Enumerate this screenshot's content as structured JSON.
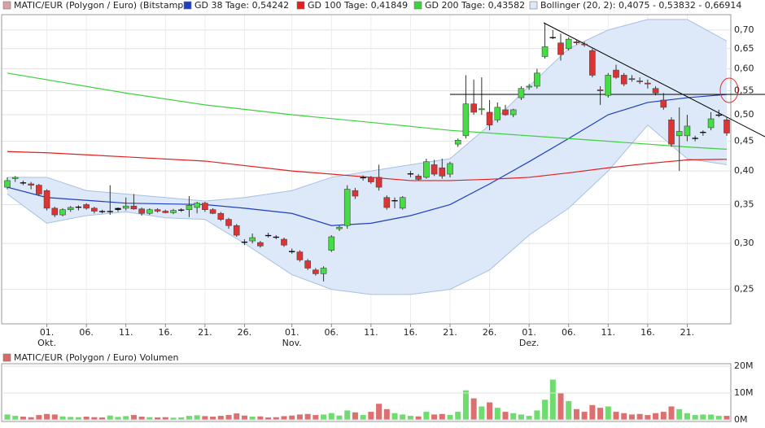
{
  "chart_data": {
    "type": "candlestick",
    "name": "MATIC/EUR (Polygon / Euro) (Bitstamp)",
    "log_scale": true,
    "grid": true,
    "up_color": "#44dd44",
    "down_color": "#dd3333",
    "flat_color": "#000000",
    "legend_color": "#d9a3a3",
    "x": [
      "09-26",
      "09-27",
      "09-28",
      "09-29",
      "09-30",
      "10-01",
      "10-02",
      "10-03",
      "10-04",
      "10-05",
      "10-06",
      "10-07",
      "10-08",
      "10-09",
      "10-10",
      "10-11",
      "10-12",
      "10-13",
      "10-14",
      "10-15",
      "10-16",
      "10-17",
      "10-18",
      "10-19",
      "10-20",
      "10-21",
      "10-22",
      "10-23",
      "10-24",
      "10-25",
      "10-26",
      "10-27",
      "10-28",
      "10-29",
      "10-30",
      "10-31",
      "11-01",
      "11-02",
      "11-03",
      "11-04",
      "11-05",
      "11-06",
      "11-07",
      "11-08",
      "11-09",
      "11-10",
      "11-11",
      "11-12",
      "11-13",
      "11-14",
      "11-15",
      "11-16",
      "11-17",
      "11-18",
      "11-19",
      "11-20",
      "11-21",
      "11-22",
      "11-23",
      "11-24",
      "11-25",
      "11-26",
      "11-27",
      "11-28",
      "11-29",
      "11-30",
      "12-01",
      "12-02",
      "12-03",
      "12-04",
      "12-05",
      "12-06",
      "12-07",
      "12-08",
      "12-09",
      "12-10",
      "12-11",
      "12-12",
      "12-13",
      "12-14",
      "12-15",
      "12-16",
      "12-17",
      "12-18",
      "12-19",
      "12-20",
      "12-21",
      "12-22",
      "12-23",
      "12-24",
      "12-25",
      "12-26"
    ],
    "ohlc": [
      [
        0.375,
        0.39,
        0.372,
        0.385
      ],
      [
        0.388,
        0.392,
        0.383,
        0.39
      ],
      [
        0.382,
        0.385,
        0.378,
        0.381
      ],
      [
        0.38,
        0.383,
        0.372,
        0.378
      ],
      [
        0.378,
        0.38,
        0.362,
        0.365
      ],
      [
        0.37,
        0.372,
        0.342,
        0.345
      ],
      [
        0.345,
        0.347,
        0.333,
        0.336
      ],
      [
        0.336,
        0.345,
        0.334,
        0.343
      ],
      [
        0.343,
        0.348,
        0.34,
        0.346
      ],
      [
        0.346,
        0.349,
        0.342,
        0.347
      ],
      [
        0.35,
        0.352,
        0.343,
        0.345
      ],
      [
        0.345,
        0.347,
        0.338,
        0.341
      ],
      [
        0.341,
        0.343,
        0.338,
        0.34
      ],
      [
        0.34,
        0.378,
        0.336,
        0.341
      ],
      [
        0.343,
        0.346,
        0.34,
        0.345
      ],
      [
        0.345,
        0.36,
        0.342,
        0.348
      ],
      [
        0.348,
        0.365,
        0.343,
        0.344
      ],
      [
        0.344,
        0.346,
        0.335,
        0.338
      ],
      [
        0.338,
        0.345,
        0.336,
        0.343
      ],
      [
        0.343,
        0.345,
        0.339,
        0.341
      ],
      [
        0.341,
        0.343,
        0.338,
        0.339
      ],
      [
        0.339,
        0.344,
        0.337,
        0.342
      ],
      [
        0.342,
        0.345,
        0.34,
        0.343
      ],
      [
        0.343,
        0.362,
        0.333,
        0.349
      ],
      [
        0.346,
        0.354,
        0.338,
        0.352
      ],
      [
        0.352,
        0.354,
        0.34,
        0.343
      ],
      [
        0.343,
        0.345,
        0.337,
        0.338
      ],
      [
        0.338,
        0.34,
        0.328,
        0.33
      ],
      [
        0.33,
        0.332,
        0.318,
        0.322
      ],
      [
        0.322,
        0.324,
        0.308,
        0.31
      ],
      [
        0.302,
        0.305,
        0.298,
        0.301
      ],
      [
        0.303,
        0.312,
        0.3,
        0.307
      ],
      [
        0.301,
        0.303,
        0.295,
        0.297
      ],
      [
        0.31,
        0.313,
        0.307,
        0.309
      ],
      [
        0.308,
        0.31,
        0.305,
        0.307
      ],
      [
        0.305,
        0.307,
        0.296,
        0.298
      ],
      [
        0.291,
        0.294,
        0.288,
        0.29
      ],
      [
        0.29,
        0.292,
        0.279,
        0.281
      ],
      [
        0.28,
        0.282,
        0.27,
        0.272
      ],
      [
        0.27,
        0.272,
        0.264,
        0.266
      ],
      [
        0.266,
        0.274,
        0.258,
        0.272
      ],
      [
        0.292,
        0.31,
        0.29,
        0.308
      ],
      [
        0.318,
        0.322,
        0.315,
        0.32
      ],
      [
        0.322,
        0.378,
        0.318,
        0.372
      ],
      [
        0.37,
        0.374,
        0.358,
        0.362
      ],
      [
        0.39,
        0.393,
        0.385,
        0.39
      ],
      [
        0.39,
        0.392,
        0.38,
        0.383
      ],
      [
        0.39,
        0.41,
        0.37,
        0.375
      ],
      [
        0.36,
        0.363,
        0.343,
        0.346
      ],
      [
        0.355,
        0.36,
        0.345,
        0.356
      ],
      [
        0.345,
        0.362,
        0.343,
        0.36
      ],
      [
        0.395,
        0.4,
        0.39,
        0.396
      ],
      [
        0.392,
        0.395,
        0.385,
        0.387
      ],
      [
        0.39,
        0.42,
        0.388,
        0.415
      ],
      [
        0.41,
        0.418,
        0.392,
        0.395
      ],
      [
        0.405,
        0.42,
        0.388,
        0.392
      ],
      [
        0.395,
        0.415,
        0.39,
        0.412
      ],
      [
        0.445,
        0.455,
        0.44,
        0.452
      ],
      [
        0.46,
        0.585,
        0.455,
        0.522
      ],
      [
        0.522,
        0.575,
        0.5,
        0.505
      ],
      [
        0.51,
        0.58,
        0.5,
        0.512
      ],
      [
        0.505,
        0.53,
        0.47,
        0.48
      ],
      [
        0.49,
        0.525,
        0.485,
        0.515
      ],
      [
        0.51,
        0.52,
        0.498,
        0.5
      ],
      [
        0.5,
        0.512,
        0.495,
        0.51
      ],
      [
        0.535,
        0.56,
        0.53,
        0.555
      ],
      [
        0.558,
        0.565,
        0.552,
        0.56
      ],
      [
        0.56,
        0.6,
        0.555,
        0.59
      ],
      [
        0.63,
        0.72,
        0.625,
        0.655
      ],
      [
        0.68,
        0.7,
        0.675,
        0.68
      ],
      [
        0.665,
        0.69,
        0.62,
        0.635
      ],
      [
        0.65,
        0.68,
        0.645,
        0.675
      ],
      [
        0.668,
        0.672,
        0.66,
        0.665
      ],
      [
        0.662,
        0.668,
        0.655,
        0.66
      ],
      [
        0.645,
        0.65,
        0.58,
        0.585
      ],
      [
        0.552,
        0.56,
        0.52,
        0.55
      ],
      [
        0.54,
        0.59,
        0.535,
        0.585
      ],
      [
        0.597,
        0.61,
        0.577,
        0.58
      ],
      [
        0.585,
        0.59,
        0.56,
        0.565
      ],
      [
        0.577,
        0.585,
        0.57,
        0.575
      ],
      [
        0.572,
        0.58,
        0.565,
        0.57
      ],
      [
        0.567,
        0.575,
        0.555,
        0.565
      ],
      [
        0.555,
        0.56,
        0.54,
        0.545
      ],
      [
        0.53,
        0.545,
        0.51,
        0.515
      ],
      [
        0.49,
        0.495,
        0.44,
        0.445
      ],
      [
        0.46,
        0.515,
        0.4,
        0.468
      ],
      [
        0.46,
        0.5,
        0.45,
        0.478
      ],
      [
        0.455,
        0.46,
        0.45,
        0.456
      ],
      [
        0.466,
        0.47,
        0.46,
        0.467
      ],
      [
        0.475,
        0.505,
        0.47,
        0.492
      ],
      [
        0.5,
        0.51,
        0.495,
        0.5
      ],
      [
        0.49,
        0.495,
        0.46,
        0.465
      ]
    ],
    "overlays": [
      {
        "name": "GD 38 Tage: 0,54242",
        "color": "#1f3fbf",
        "x": [
          "09-26",
          "10-01",
          "10-11",
          "10-21",
          "10-26",
          "11-01",
          "11-06",
          "11-11",
          "11-16",
          "11-21",
          "11-26",
          "12-01",
          "12-06",
          "12-11",
          "12-16",
          "12-21",
          "12-26"
        ],
        "values": [
          0.375,
          0.36,
          0.352,
          0.35,
          0.345,
          0.338,
          0.322,
          0.325,
          0.335,
          0.35,
          0.38,
          0.415,
          0.455,
          0.5,
          0.525,
          0.535,
          0.542
        ]
      },
      {
        "name": "GD 100 Tage: 0,41849",
        "color": "#e02020",
        "x": [
          "09-26",
          "10-01",
          "10-11",
          "10-21",
          "11-01",
          "11-11",
          "11-16",
          "11-21",
          "11-26",
          "12-01",
          "12-06",
          "12-11",
          "12-16",
          "12-21",
          "12-26"
        ],
        "values": [
          0.432,
          0.43,
          0.423,
          0.416,
          0.4,
          0.39,
          0.385,
          0.385,
          0.387,
          0.39,
          0.397,
          0.405,
          0.412,
          0.418,
          0.419
        ]
      },
      {
        "name": "GD 200 Tage: 0,43582",
        "color": "#3ed03e",
        "x": [
          "09-26",
          "10-11",
          "10-21",
          "11-01",
          "11-11",
          "11-21",
          "12-01",
          "12-11",
          "12-21",
          "12-26"
        ],
        "values": [
          0.59,
          0.545,
          0.52,
          0.5,
          0.485,
          0.47,
          0.46,
          0.45,
          0.44,
          0.436
        ]
      }
    ],
    "bollinger": {
      "name": "Bollinger (20, 2): 0,4075 - 0,53832 - 0,66914",
      "color": "#dde8f8",
      "line_color": "#a9c0e2",
      "x": [
        "09-26",
        "10-01",
        "10-06",
        "10-11",
        "10-16",
        "10-21",
        "10-26",
        "11-01",
        "11-06",
        "11-11",
        "11-16",
        "11-21",
        "11-26",
        "12-01",
        "12-06",
        "12-11",
        "12-16",
        "12-21",
        "12-26"
      ],
      "upper": [
        0.39,
        0.39,
        0.37,
        0.365,
        0.36,
        0.355,
        0.36,
        0.37,
        0.39,
        0.4,
        0.41,
        0.42,
        0.48,
        0.56,
        0.65,
        0.7,
        0.73,
        0.73,
        0.67
      ],
      "lower": [
        0.365,
        0.325,
        0.335,
        0.34,
        0.332,
        0.33,
        0.3,
        0.265,
        0.25,
        0.245,
        0.245,
        0.25,
        0.27,
        0.31,
        0.345,
        0.4,
        0.48,
        0.42,
        0.41
      ]
    },
    "ylim": [
      0.218,
      0.744
    ],
    "yticks": [
      {
        "value": 0.25,
        "label": "0,25"
      },
      {
        "value": 0.3,
        "label": "0,30"
      },
      {
        "value": 0.35,
        "label": "0,35"
      },
      {
        "value": 0.4,
        "label": "0,40"
      },
      {
        "value": 0.45,
        "label": "0,45"
      },
      {
        "value": 0.5,
        "label": "0,50"
      },
      {
        "value": 0.55,
        "label": "0,55"
      },
      {
        "value": 0.6,
        "label": "0,60"
      },
      {
        "value": 0.65,
        "label": "0,65"
      },
      {
        "value": 0.7,
        "label": "0,70"
      }
    ],
    "xlim": [
      "09-26",
      "12-26"
    ],
    "xticks": [
      {
        "value": "10-01",
        "label": "01."
      },
      {
        "value": "10-06",
        "label": "06."
      },
      {
        "value": "10-11",
        "label": "11."
      },
      {
        "value": "10-16",
        "label": "16."
      },
      {
        "value": "10-21",
        "label": "21."
      },
      {
        "value": "10-26",
        "label": "26."
      },
      {
        "value": "11-01",
        "label": "01."
      },
      {
        "value": "11-06",
        "label": "06."
      },
      {
        "value": "11-11",
        "label": "11."
      },
      {
        "value": "11-16",
        "label": "16."
      },
      {
        "value": "11-21",
        "label": "21."
      },
      {
        "value": "11-26",
        "label": "26."
      },
      {
        "value": "12-01",
        "label": "01."
      },
      {
        "value": "12-06",
        "label": "06."
      },
      {
        "value": "12-11",
        "label": "11."
      },
      {
        "value": "12-16",
        "label": "16."
      },
      {
        "value": "12-21",
        "label": "21."
      }
    ],
    "month_labels": [
      {
        "value": "10-01",
        "label": "Okt."
      },
      {
        "value": "11-01",
        "label": "Nov."
      },
      {
        "value": "12-01",
        "label": "Dez."
      }
    ],
    "volume": {
      "name": "MATIC/EUR (Polygon / Euro) Volumen",
      "legend_color": "#d96a6a",
      "up_color": "#6fdc6f",
      "down_color": "#dc6f6f",
      "values": [
        2000000,
        1500000,
        1200000,
        1000000,
        1800000,
        2200000,
        2000000,
        1300000,
        1100000,
        1000000,
        1200000,
        1000000,
        900000,
        1600000,
        1100000,
        1400000,
        1800000,
        1200000,
        1000000,
        900000,
        1000000,
        800000,
        900000,
        1500000,
        1700000,
        1400000,
        1200000,
        1500000,
        1800000,
        2400000,
        1600000,
        1200000,
        1300000,
        900000,
        1000000,
        1400000,
        1600000,
        2000000,
        2200000,
        1800000,
        2000000,
        2500000,
        1600000,
        3500000,
        2800000,
        1800000,
        3000000,
        6000000,
        4000000,
        2500000,
        2000000,
        1500000,
        1300000,
        3000000,
        2000000,
        2200000,
        1800000,
        3000000,
        11000000,
        8000000,
        5000000,
        6500000,
        4500000,
        3000000,
        2500000,
        2000000,
        1500000,
        3500000,
        7500000,
        15000000,
        10000000,
        7000000,
        4000000,
        3000000,
        5500000,
        4500000,
        5000000,
        3000000,
        2500000,
        2000000,
        2200000,
        1800000,
        2500000,
        3000000,
        5000000,
        4000000,
        2500000,
        1800000,
        2000000,
        2000000,
        1500000,
        1500000
      ],
      "ylim": [
        0,
        20000000
      ],
      "yticks": [
        {
          "value": 0,
          "label": "0M"
        },
        {
          "value": 10000000,
          "label": "10M"
        },
        {
          "value": 20000000,
          "label": "20M"
        }
      ]
    }
  }
}
